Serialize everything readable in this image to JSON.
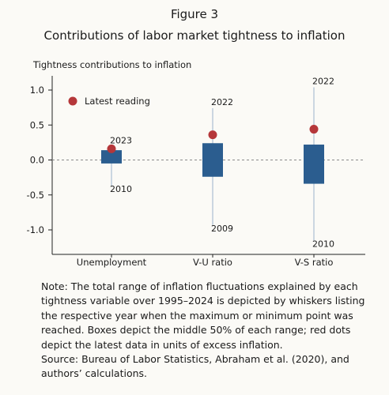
{
  "figure_label": "Figure 3",
  "title": "Contributions of labor market tightness to inflation",
  "note": "Note: The total range of inflation fluctuations explained by each tightness variable over 1995–2024 is depicted by whiskers listing the respective year when the maximum or minimum point was reached. Boxes depict the middle 50% of each range; red dots depict the latest data in units of excess inflation.",
  "source": "Source: Bureau of Labor Statistics, Abraham et al. (2020), and authors’ calculations.",
  "colors": {
    "box": "#2b5d8f",
    "whisker": "#9bb3cc",
    "dot": "#b5373a",
    "axis": "#222222"
  },
  "chart_data": {
    "type": "box",
    "ylabel": "Tightness contributions to inflation",
    "ylim": [
      -1.35,
      1.2
    ],
    "yticks": [
      1.0,
      0.5,
      0.0,
      -0.5,
      -1.0
    ],
    "ytick_labels": [
      "1.0",
      "0.5",
      "0.0",
      "-0.5",
      "-1.0"
    ],
    "zero_line": "dashed",
    "legend": {
      "label": "Latest reading",
      "position": "top-left"
    },
    "categories": [
      "Unemployment",
      "V-U ratio",
      "V-S ratio"
    ],
    "series": [
      {
        "category": "Unemployment",
        "whisker_max": 0.19,
        "whisker_min": -0.37,
        "box_high": 0.14,
        "box_low": -0.05,
        "latest": 0.16,
        "max_year": "2023",
        "min_year": "2010"
      },
      {
        "category": "V-U ratio",
        "whisker_max": 0.74,
        "whisker_min": -0.93,
        "box_high": 0.24,
        "box_low": -0.24,
        "latest": 0.36,
        "max_year": "2022",
        "min_year": "2009"
      },
      {
        "category": "V-S ratio",
        "whisker_max": 1.04,
        "whisker_min": -1.15,
        "box_high": 0.22,
        "box_low": -0.34,
        "latest": 0.44,
        "max_year": "2022",
        "min_year": "2010"
      }
    ]
  }
}
